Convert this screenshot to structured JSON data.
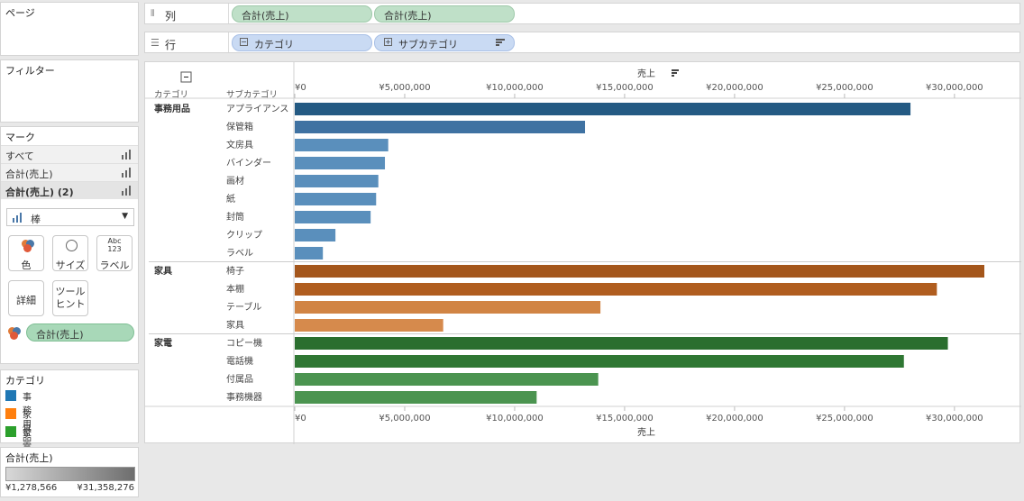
{
  "pages_panel": {
    "title": "ページ"
  },
  "filters_panel": {
    "title": "フィルター"
  },
  "marks_panel": {
    "title": "マーク",
    "rows": [
      "すべて",
      "合計(売上)",
      "合計(売上) (2)"
    ],
    "mark_type": "棒",
    "buttons": {
      "color": "色",
      "size": "サイズ",
      "label_top": "Abc\n123",
      "label": "ラベル",
      "detail": "詳細",
      "tooltip": "ツール\nヒント"
    },
    "color_pill": "合計(売上)"
  },
  "category_legend": {
    "title": "カテゴリ",
    "items": [
      {
        "label": "事務用品",
        "color": "#1f77b4"
      },
      {
        "label": "家具",
        "color": "#ff7f0e"
      },
      {
        "label": "家電",
        "color": "#2ca02c"
      }
    ]
  },
  "sales_legend": {
    "title": "合計(売上)",
    "min": "¥1,278,566",
    "max": "¥31,358,276"
  },
  "shelves": {
    "columns": {
      "label": "列",
      "pills": [
        "合計(売上)",
        "合計(売上)"
      ]
    },
    "rows": {
      "label": "行",
      "pills": [
        "カテゴリ",
        "サブカテゴリ"
      ]
    }
  },
  "chart_data": {
    "type": "bar",
    "orientation": "horizontal",
    "xlabel": "売上",
    "col_headers": {
      "category": "カテゴリ",
      "subcategory": "サブカテゴリ"
    },
    "xlim": [
      0,
      32000000
    ],
    "ticks": [
      {
        "v": 0,
        "label": "¥0"
      },
      {
        "v": 5000000,
        "label": "¥5,000,000"
      },
      {
        "v": 10000000,
        "label": "¥10,000,000"
      },
      {
        "v": 15000000,
        "label": "¥15,000,000"
      },
      {
        "v": 20000000,
        "label": "¥20,000,000"
      },
      {
        "v": 25000000,
        "label": "¥25,000,000"
      },
      {
        "v": 30000000,
        "label": "¥30,000,000"
      }
    ],
    "groups": [
      {
        "category": "事務用品",
        "bars": [
          {
            "sub": "アプライアンス",
            "value": 28000000,
            "color": "#245a83"
          },
          {
            "sub": "保管箱",
            "value": 13200000,
            "color": "#3f72a2"
          },
          {
            "sub": "文房具",
            "value": 4250000,
            "color": "#5a8fbc"
          },
          {
            "sub": "バインダー",
            "value": 4100000,
            "color": "#5a8fbc"
          },
          {
            "sub": "画材",
            "value": 3800000,
            "color": "#5a8fbc"
          },
          {
            "sub": "紙",
            "value": 3700000,
            "color": "#5a8fbc"
          },
          {
            "sub": "封筒",
            "value": 3450000,
            "color": "#5a8fbc"
          },
          {
            "sub": "クリップ",
            "value": 1850000,
            "color": "#5a8fbc"
          },
          {
            "sub": "ラベル",
            "value": 1278566,
            "color": "#5a8fbc"
          }
        ]
      },
      {
        "category": "家具",
        "bars": [
          {
            "sub": "椅子",
            "value": 31358276,
            "color": "#a4561b"
          },
          {
            "sub": "本棚",
            "value": 29200000,
            "color": "#b05d1f"
          },
          {
            "sub": "テーブル",
            "value": 13900000,
            "color": "#d18444"
          },
          {
            "sub": "家具",
            "value": 6750000,
            "color": "#d68a4c"
          }
        ]
      },
      {
        "category": "家電",
        "bars": [
          {
            "sub": "コピー機",
            "value": 29700000,
            "color": "#2a6e2e"
          },
          {
            "sub": "電話機",
            "value": 27700000,
            "color": "#2f7733"
          },
          {
            "sub": "付属品",
            "value": 13800000,
            "color": "#4b9450"
          },
          {
            "sub": "事務機器",
            "value": 11000000,
            "color": "#4b9450"
          }
        ]
      }
    ]
  }
}
